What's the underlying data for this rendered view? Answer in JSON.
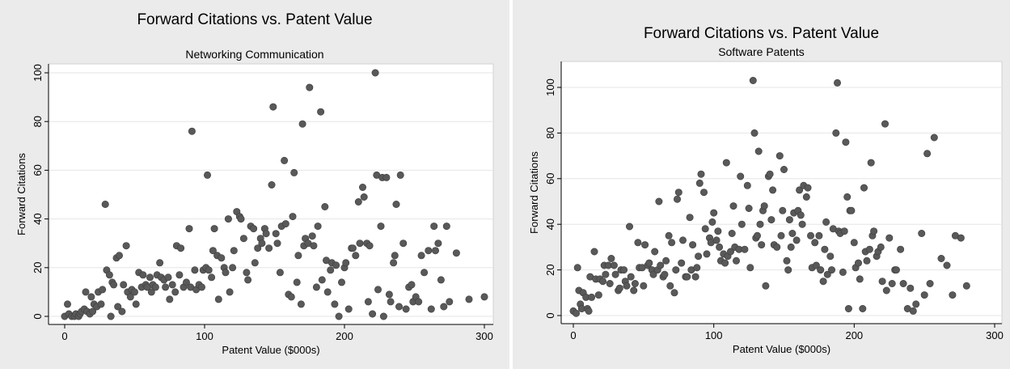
{
  "chart_data": [
    {
      "type": "scatter",
      "title": "Forward Citations vs. Patent Value",
      "subtitle": "Networking Communication",
      "xlabel": "Patent Value ($000s)",
      "ylabel": "Forward Citations",
      "xlim": [
        0,
        300
      ],
      "ylim": [
        0,
        100
      ],
      "xticks": [
        "0",
        "100",
        "200",
        "300"
      ],
      "yticks": [
        "0",
        "20",
        "40",
        "60",
        "80",
        "100"
      ],
      "grid": true,
      "marker_color": "#595959",
      "points": [
        [
          0,
          0
        ],
        [
          2,
          5
        ],
        [
          3,
          1
        ],
        [
          5,
          0
        ],
        [
          7,
          0
        ],
        [
          8,
          1
        ],
        [
          10,
          0
        ],
        [
          11,
          1
        ],
        [
          12,
          2
        ],
        [
          14,
          3
        ],
        [
          15,
          10
        ],
        [
          16,
          2
        ],
        [
          18,
          1
        ],
        [
          19,
          8
        ],
        [
          20,
          2
        ],
        [
          21,
          5
        ],
        [
          23,
          4
        ],
        [
          24,
          10
        ],
        [
          26,
          5
        ],
        [
          27,
          11
        ],
        [
          29,
          46
        ],
        [
          30,
          19
        ],
        [
          32,
          17
        ],
        [
          33,
          0
        ],
        [
          34,
          14
        ],
        [
          35,
          13
        ],
        [
          37,
          24
        ],
        [
          38,
          4
        ],
        [
          39,
          25
        ],
        [
          41,
          2
        ],
        [
          42,
          13
        ],
        [
          44,
          29
        ],
        [
          45,
          10
        ],
        [
          47,
          8
        ],
        [
          48,
          11
        ],
        [
          50,
          10
        ],
        [
          51,
          5
        ],
        [
          53,
          18
        ],
        [
          55,
          12
        ],
        [
          56,
          17
        ],
        [
          58,
          13
        ],
        [
          59,
          12
        ],
        [
          61,
          16
        ],
        [
          62,
          10
        ],
        [
          63,
          13
        ],
        [
          65,
          12
        ],
        [
          66,
          17
        ],
        [
          68,
          22
        ],
        [
          69,
          16
        ],
        [
          71,
          15
        ],
        [
          72,
          12
        ],
        [
          74,
          16
        ],
        [
          75,
          7
        ],
        [
          77,
          13
        ],
        [
          79,
          10
        ],
        [
          80,
          29
        ],
        [
          82,
          17
        ],
        [
          83,
          28
        ],
        [
          85,
          12
        ],
        [
          87,
          14
        ],
        [
          89,
          36
        ],
        [
          90,
          12
        ],
        [
          91,
          76
        ],
        [
          93,
          19
        ],
        [
          94,
          11
        ],
        [
          96,
          13
        ],
        [
          98,
          12
        ],
        [
          99,
          19
        ],
        [
          101,
          20
        ],
        [
          102,
          58
        ],
        [
          103,
          19
        ],
        [
          105,
          16
        ],
        [
          106,
          27
        ],
        [
          107,
          36
        ],
        [
          109,
          25
        ],
        [
          110,
          7
        ],
        [
          112,
          24
        ],
        [
          114,
          20
        ],
        [
          115,
          18
        ],
        [
          117,
          40
        ],
        [
          118,
          10
        ],
        [
          120,
          20
        ],
        [
          121,
          27
        ],
        [
          123,
          43
        ],
        [
          125,
          41
        ],
        [
          126,
          40
        ],
        [
          128,
          32
        ],
        [
          130,
          18
        ],
        [
          131,
          15
        ],
        [
          133,
          37
        ],
        [
          135,
          36
        ],
        [
          136,
          22
        ],
        [
          138,
          28
        ],
        [
          140,
          32
        ],
        [
          141,
          30
        ],
        [
          143,
          36
        ],
        [
          144,
          34
        ],
        [
          146,
          28
        ],
        [
          148,
          54
        ],
        [
          149,
          86
        ],
        [
          151,
          34
        ],
        [
          152,
          30
        ],
        [
          154,
          18
        ],
        [
          155,
          37
        ],
        [
          157,
          64
        ],
        [
          158,
          38
        ],
        [
          160,
          9
        ],
        [
          162,
          8
        ],
        [
          163,
          41
        ],
        [
          164,
          59
        ],
        [
          166,
          14
        ],
        [
          167,
          25
        ],
        [
          169,
          5
        ],
        [
          170,
          79
        ],
        [
          171,
          29
        ],
        [
          172,
          32
        ],
        [
          174,
          30
        ],
        [
          175,
          94
        ],
        [
          177,
          33
        ],
        [
          178,
          29
        ],
        [
          180,
          12
        ],
        [
          181,
          37
        ],
        [
          183,
          84
        ],
        [
          184,
          15
        ],
        [
          186,
          45
        ],
        [
          187,
          23
        ],
        [
          188,
          10
        ],
        [
          190,
          19
        ],
        [
          191,
          22
        ],
        [
          193,
          5
        ],
        [
          194,
          21
        ],
        [
          196,
          0
        ],
        [
          198,
          14
        ],
        [
          200,
          20
        ],
        [
          201,
          22
        ],
        [
          203,
          3
        ],
        [
          205,
          28
        ],
        [
          206,
          28
        ],
        [
          208,
          25
        ],
        [
          210,
          47
        ],
        [
          211,
          30
        ],
        [
          213,
          53
        ],
        [
          214,
          49
        ],
        [
          216,
          30
        ],
        [
          217,
          6
        ],
        [
          218,
          29
        ],
        [
          220,
          1
        ],
        [
          222,
          100
        ],
        [
          223,
          58
        ],
        [
          224,
          11
        ],
        [
          226,
          37
        ],
        [
          227,
          57
        ],
        [
          228,
          0
        ],
        [
          230,
          57
        ],
        [
          232,
          9
        ],
        [
          233,
          6
        ],
        [
          235,
          22
        ],
        [
          236,
          25
        ],
        [
          237,
          46
        ],
        [
          239,
          4
        ],
        [
          240,
          58
        ],
        [
          242,
          30
        ],
        [
          244,
          3
        ],
        [
          246,
          12
        ],
        [
          248,
          13
        ],
        [
          249,
          6
        ],
        [
          251,
          8
        ],
        [
          253,
          6
        ],
        [
          255,
          25
        ],
        [
          257,
          18
        ],
        [
          260,
          27
        ],
        [
          262,
          3
        ],
        [
          264,
          37
        ],
        [
          265,
          27
        ],
        [
          267,
          30
        ],
        [
          269,
          15
        ],
        [
          271,
          4
        ],
        [
          273,
          37
        ],
        [
          275,
          6
        ],
        [
          280,
          26
        ],
        [
          289,
          7
        ],
        [
          300,
          8
        ]
      ]
    },
    {
      "type": "scatter",
      "title": "Forward Citations vs. Patent Value",
      "subtitle": "Software Patents",
      "xlabel": "Patent Value ($000s)",
      "ylabel": "Forward Citations",
      "xlim": [
        0,
        300
      ],
      "ylim": [
        0,
        100
      ],
      "xticks": [
        "0",
        "100",
        "200",
        "300"
      ],
      "yticks": [
        "0",
        "20",
        "40",
        "60",
        "80",
        "100"
      ],
      "grid": true,
      "marker_color": "#595959",
      "points": [
        [
          0,
          2
        ],
        [
          2,
          1
        ],
        [
          3,
          21
        ],
        [
          4,
          11
        ],
        [
          5,
          5
        ],
        [
          6,
          3
        ],
        [
          7,
          10
        ],
        [
          9,
          8
        ],
        [
          10,
          3
        ],
        [
          11,
          2
        ],
        [
          12,
          17
        ],
        [
          13,
          8
        ],
        [
          15,
          28
        ],
        [
          16,
          16
        ],
        [
          18,
          9
        ],
        [
          19,
          16
        ],
        [
          21,
          15
        ],
        [
          22,
          22
        ],
        [
          23,
          18
        ],
        [
          25,
          22
        ],
        [
          26,
          14
        ],
        [
          27,
          25
        ],
        [
          29,
          22
        ],
        [
          30,
          18
        ],
        [
          32,
          11
        ],
        [
          33,
          12
        ],
        [
          34,
          20
        ],
        [
          36,
          20
        ],
        [
          37,
          15
        ],
        [
          38,
          13
        ],
        [
          40,
          39
        ],
        [
          41,
          17
        ],
        [
          43,
          11
        ],
        [
          44,
          14
        ],
        [
          46,
          32
        ],
        [
          47,
          21
        ],
        [
          49,
          21
        ],
        [
          50,
          13
        ],
        [
          51,
          31
        ],
        [
          53,
          22
        ],
        [
          54,
          23
        ],
        [
          56,
          20
        ],
        [
          57,
          18
        ],
        [
          58,
          28
        ],
        [
          60,
          20
        ],
        [
          61,
          50
        ],
        [
          62,
          22
        ],
        [
          64,
          17
        ],
        [
          65,
          18
        ],
        [
          66,
          24
        ],
        [
          68,
          35
        ],
        [
          69,
          13
        ],
        [
          70,
          32
        ],
        [
          72,
          10
        ],
        [
          73,
          20
        ],
        [
          74,
          51
        ],
        [
          75,
          54
        ],
        [
          77,
          23
        ],
        [
          78,
          33
        ],
        [
          80,
          17
        ],
        [
          81,
          17
        ],
        [
          83,
          43
        ],
        [
          84,
          20
        ],
        [
          85,
          31
        ],
        [
          87,
          17
        ],
        [
          88,
          21
        ],
        [
          89,
          26
        ],
        [
          90,
          58
        ],
        [
          91,
          62
        ],
        [
          93,
          54
        ],
        [
          94,
          38
        ],
        [
          95,
          27
        ],
        [
          97,
          34
        ],
        [
          98,
          32
        ],
        [
          99,
          41
        ],
        [
          100,
          45
        ],
        [
          102,
          33
        ],
        [
          103,
          37
        ],
        [
          104,
          30
        ],
        [
          105,
          24
        ],
        [
          107,
          27
        ],
        [
          108,
          23
        ],
        [
          109,
          67
        ],
        [
          110,
          26
        ],
        [
          112,
          28
        ],
        [
          113,
          36
        ],
        [
          114,
          48
        ],
        [
          115,
          30
        ],
        [
          116,
          24
        ],
        [
          118,
          29
        ],
        [
          119,
          61
        ],
        [
          120,
          40
        ],
        [
          122,
          29
        ],
        [
          124,
          57
        ],
        [
          125,
          47
        ],
        [
          126,
          21
        ],
        [
          128,
          103
        ],
        [
          129,
          80
        ],
        [
          130,
          34
        ],
        [
          131,
          35
        ],
        [
          132,
          72
        ],
        [
          133,
          40
        ],
        [
          134,
          31
        ],
        [
          135,
          46
        ],
        [
          136,
          48
        ],
        [
          137,
          13
        ],
        [
          139,
          61
        ],
        [
          140,
          62
        ],
        [
          141,
          42
        ],
        [
          142,
          55
        ],
        [
          143,
          31
        ],
        [
          145,
          30
        ],
        [
          147,
          70
        ],
        [
          148,
          35
        ],
        [
          149,
          46
        ],
        [
          150,
          64
        ],
        [
          152,
          24
        ],
        [
          153,
          20
        ],
        [
          154,
          42
        ],
        [
          155,
          30
        ],
        [
          156,
          36
        ],
        [
          157,
          45
        ],
        [
          159,
          33
        ],
        [
          160,
          46
        ],
        [
          161,
          55
        ],
        [
          162,
          44
        ],
        [
          163,
          40
        ],
        [
          164,
          57
        ],
        [
          166,
          52
        ],
        [
          167,
          56
        ],
        [
          169,
          35
        ],
        [
          170,
          21
        ],
        [
          172,
          32
        ],
        [
          173,
          22
        ],
        [
          175,
          35
        ],
        [
          176,
          20
        ],
        [
          178,
          15
        ],
        [
          179,
          29
        ],
        [
          180,
          41
        ],
        [
          181,
          18
        ],
        [
          183,
          26
        ],
        [
          184,
          20
        ],
        [
          185,
          38
        ],
        [
          187,
          80
        ],
        [
          188,
          102
        ],
        [
          189,
          37
        ],
        [
          190,
          36
        ],
        [
          192,
          19
        ],
        [
          193,
          37
        ],
        [
          194,
          76
        ],
        [
          195,
          52
        ],
        [
          196,
          3
        ],
        [
          197,
          46
        ],
        [
          198,
          46
        ],
        [
          200,
          32
        ],
        [
          201,
          21
        ],
        [
          203,
          23
        ],
        [
          204,
          16
        ],
        [
          206,
          3
        ],
        [
          207,
          56
        ],
        [
          208,
          28
        ],
        [
          209,
          24
        ],
        [
          211,
          29
        ],
        [
          212,
          67
        ],
        [
          213,
          35
        ],
        [
          214,
          37
        ],
        [
          216,
          26
        ],
        [
          217,
          28
        ],
        [
          219,
          30
        ],
        [
          220,
          15
        ],
        [
          222,
          84
        ],
        [
          223,
          11
        ],
        [
          225,
          34
        ],
        [
          227,
          14
        ],
        [
          229,
          20
        ],
        [
          230,
          20
        ],
        [
          233,
          29
        ],
        [
          235,
          14
        ],
        [
          238,
          3
        ],
        [
          240,
          12
        ],
        [
          242,
          2
        ],
        [
          244,
          5
        ],
        [
          248,
          36
        ],
        [
          250,
          9
        ],
        [
          252,
          71
        ],
        [
          254,
          14
        ],
        [
          257,
          78
        ],
        [
          262,
          25
        ],
        [
          266,
          22
        ],
        [
          270,
          9
        ],
        [
          272,
          35
        ],
        [
          276,
          34
        ],
        [
          280,
          13
        ]
      ]
    }
  ]
}
